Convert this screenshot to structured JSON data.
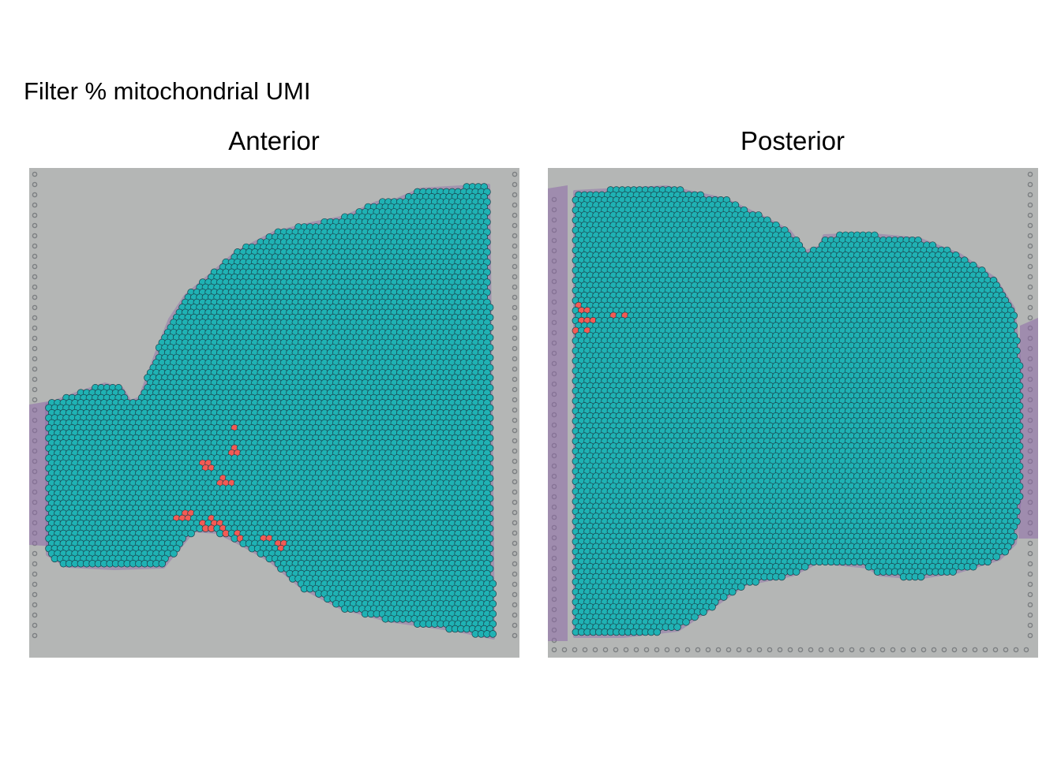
{
  "title": "Filter % mitochondrial UMI",
  "colors": {
    "kept_spot": "#1fb2b4",
    "filtered_spot": "#f35b55",
    "spot_outline": "#1a3e48",
    "tissue_background": "#b4b6b5",
    "tissue_stain": "#8e69a8",
    "fiducial": "#7c7f82"
  },
  "panels": [
    {
      "id": "anterior",
      "title": "Anterior"
    },
    {
      "id": "posterior",
      "title": "Posterior"
    }
  ]
}
